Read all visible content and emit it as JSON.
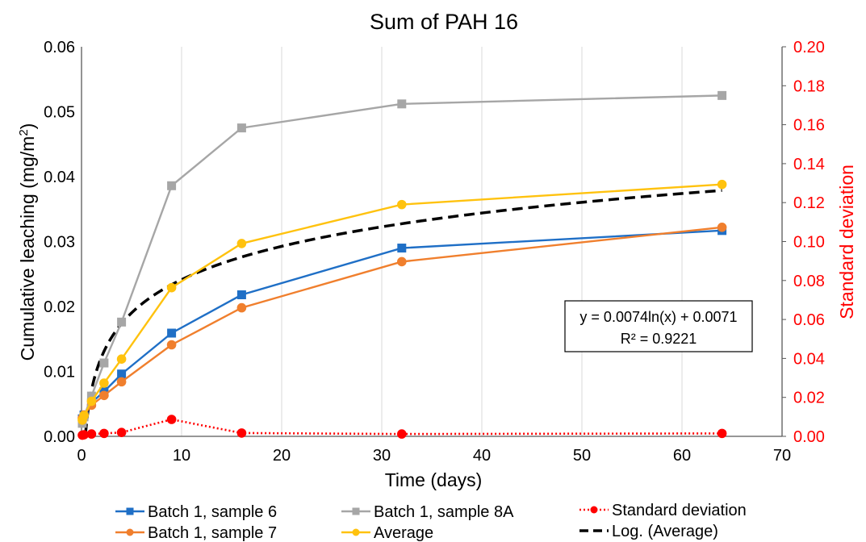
{
  "chart_data": {
    "type": "line",
    "title": "Sum of PAH 16",
    "xlabel": "Time (days)",
    "ylabel_left_main": "Cumulative leaching (mg/m",
    "ylabel_left_sup": "2",
    "ylabel_left_end": ")",
    "ylabel_right": "Standard deviation",
    "xlim": [
      0,
      70
    ],
    "xticks": [
      "0",
      "10",
      "20",
      "30",
      "40",
      "50",
      "60",
      "70"
    ],
    "ylim_left": [
      0,
      0.06
    ],
    "yticks_left": [
      "0.00",
      "0.01",
      "0.02",
      "0.03",
      "0.04",
      "0.05",
      "0.06"
    ],
    "ylim_right": [
      0,
      0.2
    ],
    "yticks_right": [
      "0.00",
      "0.02",
      "0.04",
      "0.06",
      "0.08",
      "0.10",
      "0.12",
      "0.14",
      "0.16",
      "0.18",
      "0.20"
    ],
    "grid": "vertical",
    "colors": {
      "blue": "#1f6fc6",
      "orange": "#f07f2d",
      "gray": "#a6a6a6",
      "yellow": "#ffc20e",
      "red": "#ff0000",
      "black": "#000000"
    },
    "series": [
      {
        "name": "Batch 1, sample 6",
        "axis": "left",
        "marker": "square",
        "color": "#1f6fc6",
        "dash": "solid",
        "x": [
          0.08,
          0.25,
          1,
          2.25,
          4,
          9,
          16,
          32,
          64
        ],
        "y": [
          0.0027,
          0.0033,
          0.0052,
          0.0069,
          0.0096,
          0.0159,
          0.0218,
          0.029,
          0.0317
        ]
      },
      {
        "name": "Batch 1, sample 7",
        "axis": "left",
        "marker": "circle",
        "color": "#f07f2d",
        "dash": "solid",
        "x": [
          0.08,
          0.25,
          1,
          2.25,
          4,
          9,
          16,
          32,
          64
        ],
        "y": [
          0.0028,
          0.0033,
          0.0048,
          0.0063,
          0.0084,
          0.0141,
          0.0198,
          0.0269,
          0.0322
        ]
      },
      {
        "name": "Batch 1, sample 8A",
        "axis": "left",
        "marker": "square",
        "color": "#a6a6a6",
        "dash": "solid",
        "x": [
          0.08,
          0.25,
          1,
          2.25,
          4,
          9,
          16,
          32,
          64
        ],
        "y": [
          0.002,
          0.003,
          0.0062,
          0.0113,
          0.0176,
          0.0386,
          0.0475,
          0.0512,
          0.0525
        ]
      },
      {
        "name": "Average",
        "axis": "left",
        "marker": "circle",
        "color": "#ffc20e",
        "dash": "solid",
        "x": [
          0.08,
          0.25,
          1,
          2.25,
          4,
          9,
          16,
          32,
          64
        ],
        "y": [
          0.0025,
          0.0032,
          0.0054,
          0.0082,
          0.0119,
          0.0229,
          0.0297,
          0.0357,
          0.0388
        ]
      },
      {
        "name": "Standard deviation",
        "axis": "right",
        "marker": "circle",
        "color": "#ff0000",
        "dash": "dotted",
        "x": [
          0.08,
          0.25,
          1,
          2.25,
          4,
          9,
          16,
          32,
          64
        ],
        "y": [
          0.0006,
          0.0008,
          0.0012,
          0.0015,
          0.002,
          0.0087,
          0.0017,
          0.0012,
          0.0015
        ]
      }
    ],
    "trendline": {
      "name": "Log. (Average)",
      "type": "log",
      "a": 0.0074,
      "b": 0.0071,
      "x_range": [
        0.4,
        64
      ],
      "color": "#000000",
      "dash": "dashed"
    },
    "annotation": {
      "line1": "y = 0.0074ln(x) + 0.0071",
      "line2": "R² = 0.9221"
    }
  }
}
